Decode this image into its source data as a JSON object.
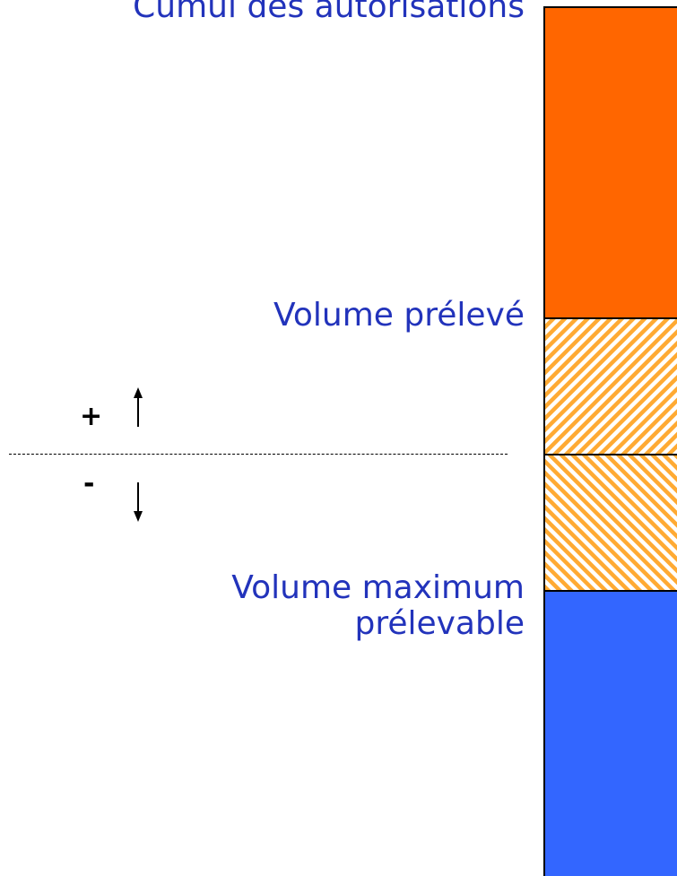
{
  "labels": {
    "cumul": "Cumul des autorisations",
    "volume_preleve": "Volume prélevé",
    "volume_max_line1": "Volume maximum",
    "volume_max_line2": "prélevable"
  },
  "signs": {
    "plus": "+",
    "minus": "-"
  },
  "colors": {
    "orange": "#ff6600",
    "orange_hatch": "#ffaa33",
    "blue": "#3366ff",
    "text_blue": "#2233bb"
  }
}
